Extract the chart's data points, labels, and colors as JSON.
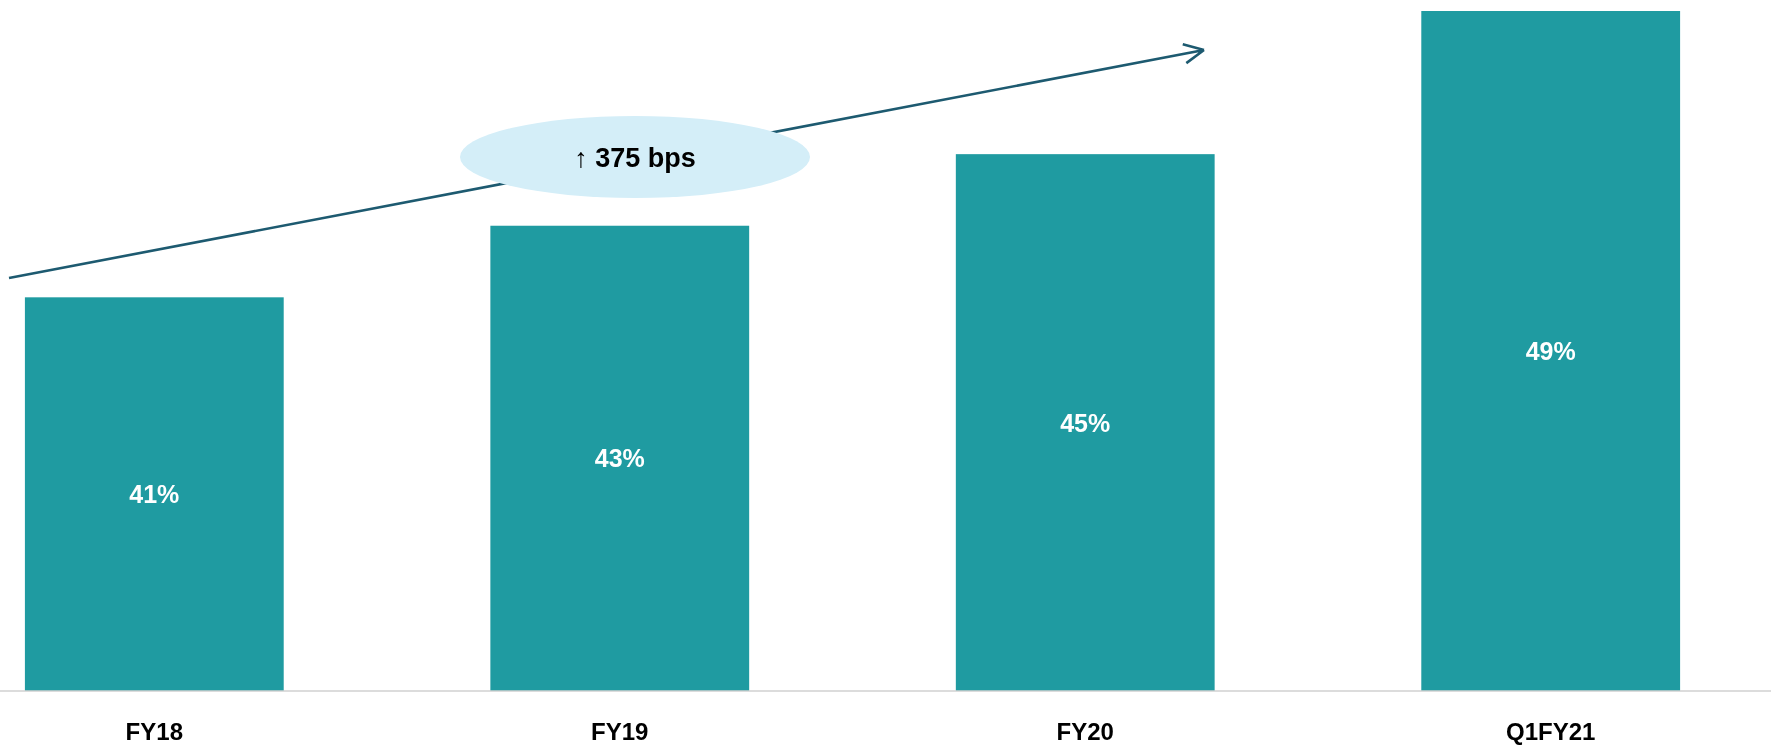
{
  "chart_data": {
    "type": "bar",
    "categories": [
      "FY18",
      "FY19",
      "FY20",
      "Q1FY21"
    ],
    "values": [
      41,
      43,
      45,
      49
    ],
    "value_labels": [
      "41%",
      "43%",
      "45%",
      "49%"
    ],
    "color": "#1f9ba1",
    "ylim": [
      30,
      49
    ],
    "annotations": [
      "↑ 375 bps"
    ]
  }
}
